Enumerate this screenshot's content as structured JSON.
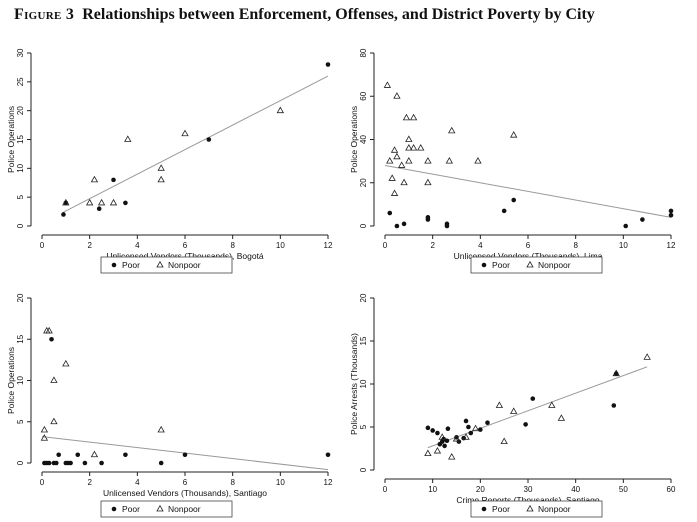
{
  "figure": {
    "label": "Figure 3",
    "title": "Relationships between Enforcement, Offenses, and District Poverty by City"
  },
  "legend": {
    "poor": "Poor",
    "nonpoor": "Nonpoor"
  },
  "chart_data": [
    {
      "type": "scatter",
      "xlabel": "Unlicensed Vendors (Thousands), Bogotá",
      "ylabel": "Police Operations",
      "xlim": [
        0,
        12
      ],
      "ylim": [
        0,
        30
      ],
      "xticks": [
        0,
        2,
        4,
        6,
        8,
        10,
        12
      ],
      "yticks": [
        0,
        5,
        10,
        15,
        20,
        25,
        30
      ],
      "fit_line": [
        [
          0.9,
          2.4
        ],
        [
          12,
          26
        ]
      ],
      "series": [
        {
          "name": "Poor",
          "points": [
            [
              0.9,
              2
            ],
            [
              1.0,
              4
            ],
            [
              2.4,
              3
            ],
            [
              3.0,
              8
            ],
            [
              3.5,
              4
            ],
            [
              7.0,
              15
            ],
            [
              12.0,
              28
            ]
          ]
        },
        {
          "name": "Nonpoor",
          "points": [
            [
              1.0,
              4
            ],
            [
              2.0,
              4
            ],
            [
              2.2,
              8
            ],
            [
              2.5,
              4
            ],
            [
              3.0,
              4
            ],
            [
              3.6,
              15
            ],
            [
              5.0,
              10
            ],
            [
              5.0,
              8
            ],
            [
              6.0,
              16
            ],
            [
              10.0,
              20
            ]
          ]
        }
      ]
    },
    {
      "type": "scatter",
      "xlabel": "Unlicensed Vendors (Thousands), Lima",
      "ylabel": "Police Operations",
      "xlim": [
        0,
        12
      ],
      "ylim": [
        0,
        80
      ],
      "xticks": [
        0,
        2,
        4,
        6,
        8,
        10,
        12
      ],
      "yticks": [
        0,
        20,
        40,
        60,
        80
      ],
      "fit_line": [
        [
          0,
          28
        ],
        [
          12,
          4
        ]
      ],
      "series": [
        {
          "name": "Poor",
          "points": [
            [
              0.2,
              6
            ],
            [
              0.5,
              0
            ],
            [
              0.8,
              1
            ],
            [
              1.8,
              4
            ],
            [
              1.8,
              3
            ],
            [
              2.6,
              1
            ],
            [
              2.6,
              0
            ],
            [
              5.0,
              7
            ],
            [
              5.4,
              12
            ],
            [
              10.1,
              0
            ],
            [
              10.8,
              3
            ],
            [
              12.0,
              7
            ],
            [
              12.0,
              5
            ]
          ]
        },
        {
          "name": "Nonpoor",
          "points": [
            [
              0.1,
              65
            ],
            [
              0.5,
              60
            ],
            [
              0.2,
              30
            ],
            [
              0.3,
              22
            ],
            [
              0.4,
              35
            ],
            [
              0.5,
              32
            ],
            [
              0.4,
              15
            ],
            [
              0.7,
              28
            ],
            [
              0.8,
              20
            ],
            [
              0.9,
              50
            ],
            [
              1.0,
              40
            ],
            [
              1.0,
              36
            ],
            [
              1.0,
              30
            ],
            [
              1.2,
              50
            ],
            [
              1.2,
              36
            ],
            [
              1.5,
              36
            ],
            [
              1.8,
              30
            ],
            [
              1.8,
              20
            ],
            [
              2.7,
              30
            ],
            [
              2.8,
              44
            ],
            [
              3.9,
              30
            ],
            [
              5.4,
              42
            ]
          ]
        }
      ]
    },
    {
      "type": "scatter",
      "xlabel": "Unlicensed Vendors (Thousands), Santiago",
      "ylabel": "Police Operations",
      "xlim": [
        0,
        12
      ],
      "ylim": [
        0,
        20
      ],
      "xticks": [
        0,
        2,
        4,
        6,
        8,
        10,
        12
      ],
      "yticks": [
        0,
        5,
        10,
        15,
        20
      ],
      "fit_line": [
        [
          0,
          3.2
        ],
        [
          12,
          -0.8
        ]
      ],
      "series": [
        {
          "name": "Poor",
          "points": [
            [
              0.1,
              0
            ],
            [
              0.2,
              0
            ],
            [
              0.3,
              0
            ],
            [
              0.4,
              15
            ],
            [
              0.5,
              0
            ],
            [
              0.6,
              0
            ],
            [
              0.7,
              1
            ],
            [
              1.0,
              0
            ],
            [
              1.1,
              0
            ],
            [
              1.2,
              0
            ],
            [
              1.5,
              1
            ],
            [
              1.8,
              0
            ],
            [
              2.5,
              0
            ],
            [
              3.5,
              1
            ],
            [
              5.0,
              0
            ],
            [
              6.0,
              1
            ],
            [
              12.0,
              1
            ]
          ]
        },
        {
          "name": "Nonpoor",
          "points": [
            [
              0.1,
              3
            ],
            [
              0.1,
              4
            ],
            [
              0.2,
              16
            ],
            [
              0.3,
              16
            ],
            [
              0.5,
              10
            ],
            [
              0.5,
              5
            ],
            [
              1.0,
              12
            ],
            [
              2.2,
              1
            ],
            [
              5.0,
              4
            ]
          ]
        }
      ]
    },
    {
      "type": "scatter",
      "xlabel": "Crime Reports (Thousands), Santiago",
      "ylabel": "Police Arrests (Thousands)",
      "xlim": [
        0,
        60
      ],
      "ylim": [
        0,
        20
      ],
      "xticks": [
        0,
        10,
        20,
        30,
        40,
        50,
        60
      ],
      "yticks": [
        0,
        5,
        10,
        15,
        20
      ],
      "fit_line": [
        [
          9,
          2.6
        ],
        [
          55,
          12
        ]
      ],
      "series": [
        {
          "name": "Poor",
          "points": [
            [
              9.0,
              4.9
            ],
            [
              10.0,
              4.6
            ],
            [
              11.0,
              4.3
            ],
            [
              11.5,
              3.0
            ],
            [
              12.0,
              3.3
            ],
            [
              12.3,
              3.6
            ],
            [
              12.5,
              2.8
            ],
            [
              13.0,
              3.4
            ],
            [
              13.2,
              4.8
            ],
            [
              15.0,
              3.8
            ],
            [
              15.5,
              3.3
            ],
            [
              16.5,
              3.7
            ],
            [
              17.0,
              5.7
            ],
            [
              17.5,
              5.0
            ],
            [
              18.0,
              4.3
            ],
            [
              20.0,
              4.7
            ],
            [
              21.5,
              5.5
            ],
            [
              29.5,
              5.3
            ],
            [
              31.0,
              8.3
            ],
            [
              48.5,
              11.2
            ],
            [
              48.0,
              7.5
            ]
          ]
        },
        {
          "name": "Nonpoor",
          "points": [
            [
              9.0,
              1.9
            ],
            [
              11.0,
              2.2
            ],
            [
              12.0,
              3.8
            ],
            [
              14.0,
              1.5
            ],
            [
              15.0,
              3.6
            ],
            [
              17.0,
              3.8
            ],
            [
              19.0,
              4.8
            ],
            [
              24.0,
              7.5
            ],
            [
              25.0,
              3.3
            ],
            [
              27.0,
              6.8
            ],
            [
              35.0,
              7.5
            ],
            [
              37.0,
              6.0
            ],
            [
              48.5,
              11.2
            ],
            [
              55.0,
              13.1
            ]
          ]
        }
      ]
    }
  ]
}
